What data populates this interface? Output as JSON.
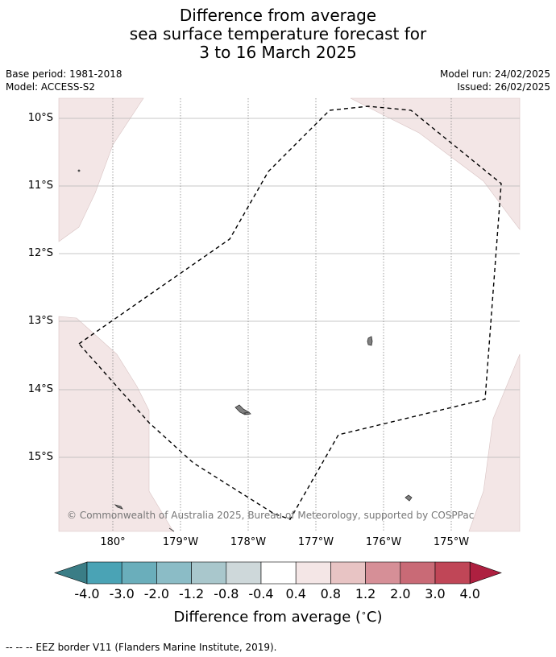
{
  "title": {
    "line1": "Difference from average",
    "line2": "sea surface temperature forecast for",
    "line3": "3 to 16 March 2025"
  },
  "meta": {
    "base_period": "Base period: 1981-2018",
    "model": "Model: ACCESS-S2",
    "model_run": "Model run: 24/02/2025",
    "issued": "Issued: 26/02/2025"
  },
  "map": {
    "lat_labels": [
      "10°S",
      "11°S",
      "12°S",
      "13°S",
      "14°S",
      "15°S"
    ],
    "lon_labels": [
      "180°",
      "179°W",
      "178°W",
      "177°W",
      "176°W",
      "175°W"
    ],
    "gridlines": true,
    "copyright": "© Commonwealth of Australia 2025, Bureau of Meteorology, supported by COSPPac"
  },
  "colorbar": {
    "title": "Difference from average (°C)",
    "title_text": "Difference from average (",
    "title_unit": "∘",
    "title_end": "C)",
    "ticks": [
      "-4.0",
      "-3.0",
      "-2.0",
      "-1.2",
      "-0.8",
      "-0.4",
      "0.4",
      "0.8",
      "1.2",
      "2.0",
      "3.0",
      "4.0"
    ],
    "colors": {
      "under": "#3a7d86",
      "bins": [
        "#4aa3b5",
        "#6aaebb",
        "#8bbcc6",
        "#a9c7cc",
        "#ced8da",
        "#ffffff",
        "#f4e6e6",
        "#e8c4c4",
        "#d68f97",
        "#c96a76",
        "#c04657"
      ],
      "over": "#ae2040"
    }
  },
  "anomaly_fill_color": "#f3e6e6",
  "eez_color": "#000000",
  "footnote": "--  --  -- EEZ border V11 (Flanders Marine Institute, 2019)."
}
